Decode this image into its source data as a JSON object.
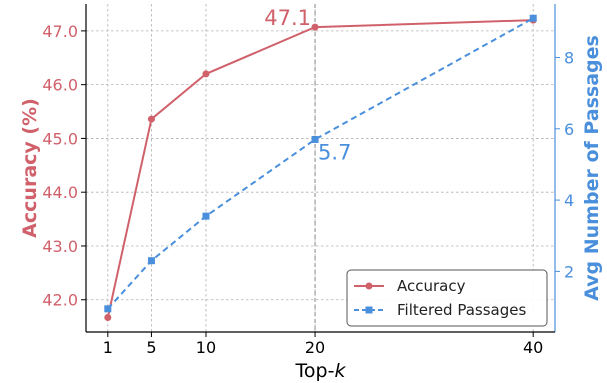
{
  "chart_data": {
    "type": "line",
    "xlabel": "Top-",
    "xlabel_italic": "k",
    "x": [
      1,
      5,
      10,
      20,
      40
    ],
    "xticks": [
      "1",
      "5",
      "10",
      "20",
      "40"
    ],
    "xlim": [
      -1,
      42
    ],
    "grid": true,
    "legend_placement": "bottom-right",
    "reference_line_x": 20,
    "y_left": {
      "label": "Accuracy (%)",
      "color": "#d0616b",
      "lim": [
        41.4,
        47.5
      ],
      "ticks": [
        "42.0",
        "43.0",
        "44.0",
        "45.0",
        "46.0",
        "47.0"
      ],
      "tick_values": [
        42.0,
        43.0,
        44.0,
        45.0,
        46.0,
        47.0
      ]
    },
    "y_right": {
      "label": "Avg Number of Passages",
      "color": "#4a8fdc",
      "lim": [
        0.3,
        9.5
      ],
      "ticks": [
        "2",
        "4",
        "6",
        "8"
      ],
      "tick_values": [
        2,
        4,
        6,
        8
      ]
    },
    "series": [
      {
        "name": "Accuracy",
        "axis": "left",
        "color": "#d0616b",
        "line_style": "solid",
        "marker": "circle",
        "values": [
          41.67,
          45.36,
          46.2,
          47.07,
          47.2
        ]
      },
      {
        "name": "Filtered Passages",
        "axis": "right",
        "color": "#4a8fdc",
        "line_style": "dashed",
        "marker": "square",
        "values": [
          0.95,
          2.3,
          3.55,
          5.7,
          9.1
        ]
      }
    ],
    "annotations": [
      {
        "text": "47.1",
        "series": 0,
        "point": 3,
        "color": "#d0616b"
      },
      {
        "text": "5.7",
        "series": 1,
        "point": 3,
        "color": "#4a8fdc"
      }
    ]
  }
}
